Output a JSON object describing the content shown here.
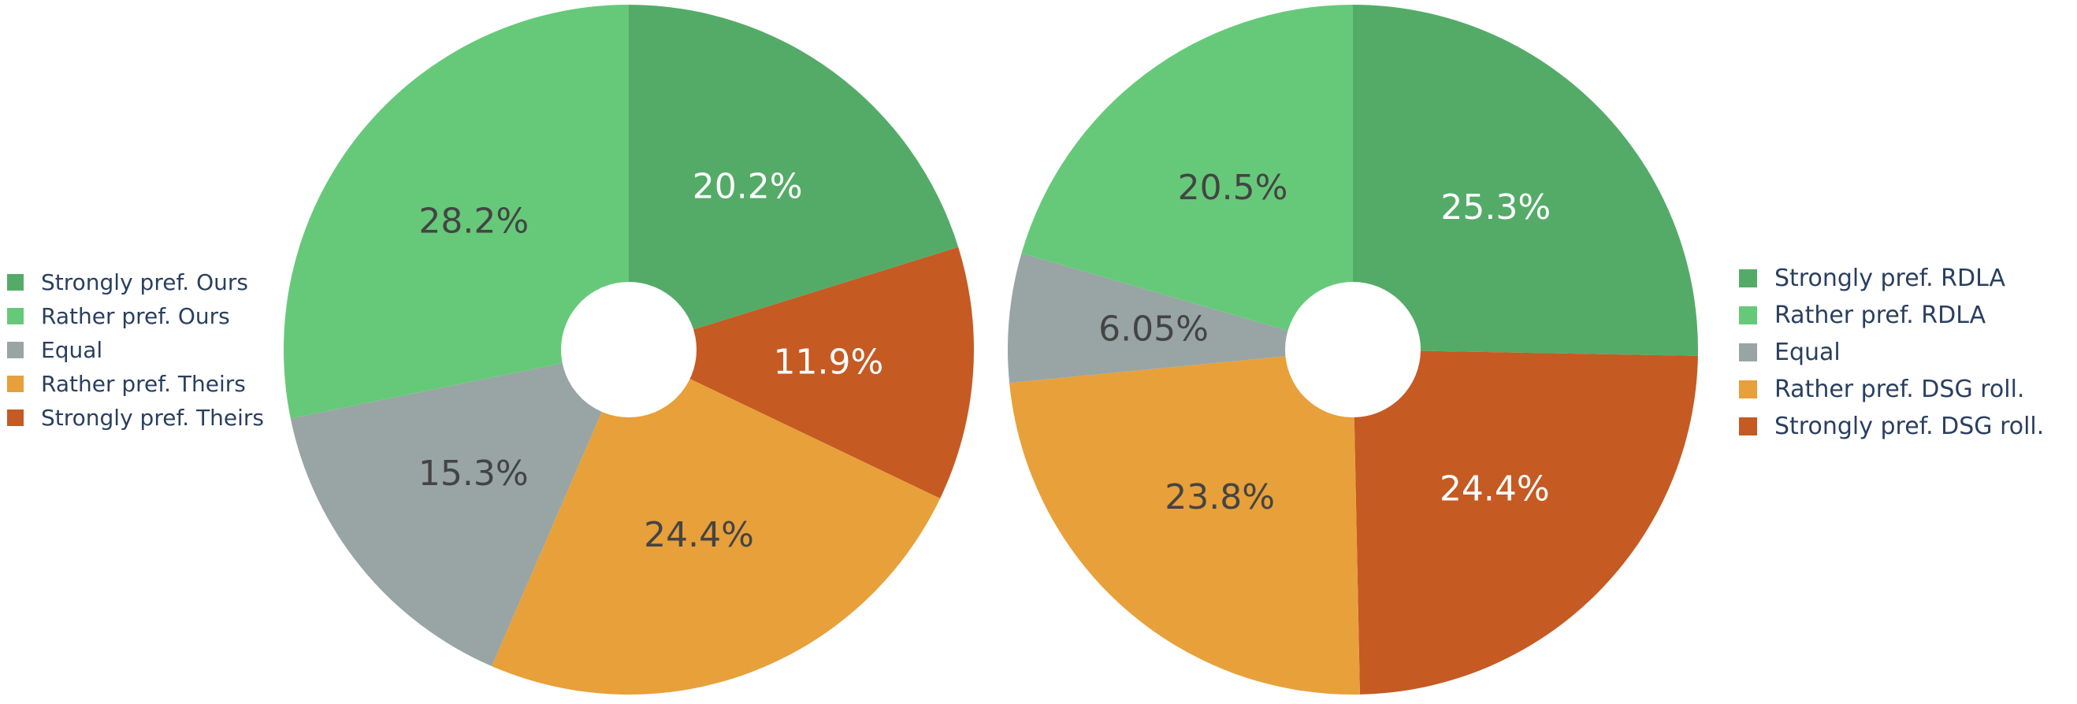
{
  "chart_data": [
    {
      "type": "pie",
      "hole": true,
      "direction": "clockwise",
      "start": "12 o'clock",
      "legend_position": "left",
      "labels": [
        "Strongly pref. Ours",
        "Rather pref. Ours",
        "Equal",
        "Rather pref. Theirs",
        "Strongly pref. Theirs"
      ],
      "slices": [
        {
          "label": "Strongly pref. Ours",
          "value": 20.2,
          "text": "20.2%",
          "color": "#54ab68",
          "text_color": "#ffffff"
        },
        {
          "label": "Strongly pref. Theirs",
          "value": 11.9,
          "text": "11.9%",
          "color": "#c55a23",
          "text_color": "#ffffff"
        },
        {
          "label": "Rather pref. Theirs",
          "value": 24.4,
          "text": "24.4%",
          "color": "#e8a03a",
          "text_color": "#444444"
        },
        {
          "label": "Equal",
          "value": 15.3,
          "text": "15.3%",
          "color": "#98a5a4",
          "text_color": "#444444"
        },
        {
          "label": "Rather pref. Ours",
          "value": 28.2,
          "text": "28.2%",
          "color": "#66c979",
          "text_color": "#444444"
        }
      ],
      "legend": [
        {
          "label": "Strongly pref. Ours",
          "color": "#54ab68"
        },
        {
          "label": "Rather pref. Ours",
          "color": "#66c979"
        },
        {
          "label": "Equal",
          "color": "#98a5a4"
        },
        {
          "label": "Rather pref. Theirs",
          "color": "#e8a03a"
        },
        {
          "label": "Strongly pref. Theirs",
          "color": "#c55a23"
        }
      ]
    },
    {
      "type": "pie",
      "hole": true,
      "direction": "clockwise",
      "start": "12 o'clock",
      "legend_position": "right",
      "labels": [
        "Strongly pref. RDLA",
        "Rather pref. RDLA",
        "Equal",
        "Rather pref. DSG roll.",
        "Strongly pref. DSG roll."
      ],
      "slices": [
        {
          "label": "Strongly pref. RDLA",
          "value": 25.3,
          "text": "25.3%",
          "color": "#54ab68",
          "text_color": "#ffffff"
        },
        {
          "label": "Strongly pref. DSG roll.",
          "value": 24.4,
          "text": "24.4%",
          "color": "#c55a23",
          "text_color": "#ffffff"
        },
        {
          "label": "Rather pref. DSG roll.",
          "value": 23.8,
          "text": "23.8%",
          "color": "#e8a03a",
          "text_color": "#444444"
        },
        {
          "label": "Equal",
          "value": 6.05,
          "text": "6.05%",
          "color": "#98a5a4",
          "text_color": "#444444"
        },
        {
          "label": "Rather pref. RDLA",
          "value": 20.5,
          "text": "20.5%",
          "color": "#66c979",
          "text_color": "#444444"
        }
      ],
      "legend": [
        {
          "label": "Strongly pref. RDLA",
          "color": "#54ab68"
        },
        {
          "label": "Rather pref. RDLA",
          "color": "#66c979"
        },
        {
          "label": "Equal",
          "color": "#98a5a4"
        },
        {
          "label": "Rather pref. DSG roll.",
          "color": "#e8a03a"
        },
        {
          "label": "Strongly pref. DSG roll.",
          "color": "#c55a23"
        }
      ]
    }
  ]
}
